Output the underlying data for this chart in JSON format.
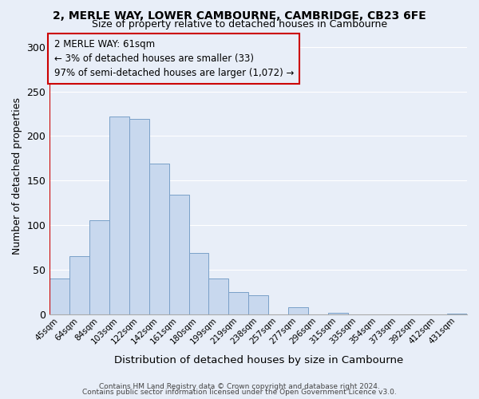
{
  "title": "2, MERLE WAY, LOWER CAMBOURNE, CAMBRIDGE, CB23 6FE",
  "subtitle": "Size of property relative to detached houses in Cambourne",
  "xlabel": "Distribution of detached houses by size in Cambourne",
  "ylabel": "Number of detached properties",
  "bar_labels": [
    "45sqm",
    "64sqm",
    "84sqm",
    "103sqm",
    "122sqm",
    "142sqm",
    "161sqm",
    "180sqm",
    "199sqm",
    "219sqm",
    "238sqm",
    "257sqm",
    "277sqm",
    "296sqm",
    "315sqm",
    "335sqm",
    "354sqm",
    "373sqm",
    "392sqm",
    "412sqm",
    "431sqm"
  ],
  "bar_heights": [
    40,
    65,
    105,
    222,
    219,
    169,
    134,
    69,
    40,
    25,
    21,
    0,
    8,
    0,
    2,
    0,
    0,
    0,
    0,
    0,
    1
  ],
  "bar_color": "#c8d8ee",
  "bar_edge_color": "#7aa0c8",
  "highlight_color": "#cc0000",
  "annotation_text_line1": "2 MERLE WAY: 61sqm",
  "annotation_text_line2": "← 3% of detached houses are smaller (33)",
  "annotation_text_line3": "97% of semi-detached houses are larger (1,072) →",
  "ylim": [
    0,
    310
  ],
  "yticks": [
    0,
    50,
    100,
    150,
    200,
    250,
    300
  ],
  "footer_line1": "Contains HM Land Registry data © Crown copyright and database right 2024.",
  "footer_line2": "Contains public sector information licensed under the Open Government Licence v3.0.",
  "background_color": "#e8eef8",
  "grid_color": "#ffffff"
}
